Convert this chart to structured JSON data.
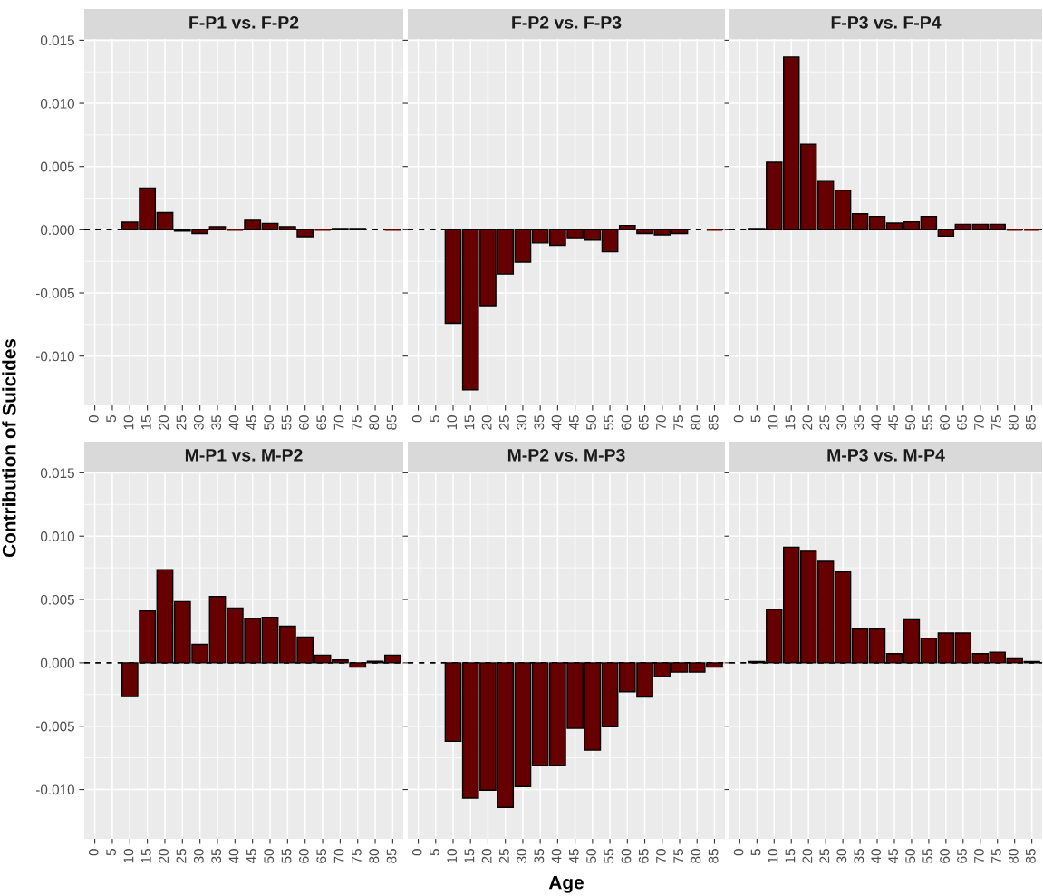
{
  "chart_data": [
    {
      "type": "bar",
      "title": "F-P1 vs. F-P2",
      "ylabel": "Contribution of Suicides",
      "categories": [
        "0",
        "5",
        "10",
        "15",
        "20",
        "25",
        "30",
        "35",
        "40",
        "45",
        "50",
        "55",
        "60",
        "65",
        "70",
        "75",
        "80",
        "85"
      ],
      "color": "#660000",
      "values": [
        null,
        null,
        0.0006,
        0.0033,
        0.00135,
        -0.0001,
        -0.0003,
        0.00025,
        0,
        0.00075,
        0.0005,
        0.00025,
        -0.00055,
        0,
        0.0001,
        0.0001,
        null,
        0
      ],
      "ylim": [
        -0.0139,
        0.0151
      ],
      "yticks": [
        {
          "value": -0.01,
          "label": "-0.010"
        },
        {
          "value": -0.005,
          "label": "-0.005"
        },
        {
          "value": 0,
          "label": "0.000"
        },
        {
          "value": 0.005,
          "label": "0.005"
        },
        {
          "value": 0.01,
          "label": "0.010"
        },
        {
          "value": 0.015,
          "label": "0.015"
        }
      ],
      "grid": true,
      "ref_lines": [
        {
          "axis": "y",
          "value": 0,
          "line_style": "dashed",
          "color": "#000000"
        }
      ]
    },
    {
      "type": "bar",
      "title": "F-P2 vs. F-P3",
      "categories": [
        "0",
        "5",
        "10",
        "15",
        "20",
        "25",
        "30",
        "35",
        "40",
        "45",
        "50",
        "55",
        "60",
        "65",
        "70",
        "75",
        "80",
        "85"
      ],
      "color": "#660000",
      "values": [
        null,
        null,
        -0.0074,
        -0.01266,
        -0.006,
        -0.0035,
        -0.00256,
        -0.00104,
        -0.00123,
        -0.00063,
        -0.00082,
        -0.00174,
        0.00034,
        -0.0003,
        -0.0004,
        -0.0003,
        null,
        0
      ],
      "ylim": [
        -0.0139,
        0.0151
      ],
      "yticks": [
        {
          "value": -0.01,
          "label": null
        },
        {
          "value": -0.005,
          "label": null
        },
        {
          "value": 0,
          "label": null
        },
        {
          "value": 0.005,
          "label": null
        },
        {
          "value": 0.01,
          "label": null
        },
        {
          "value": 0.015,
          "label": null
        }
      ],
      "grid": true,
      "tick_labels": "x",
      "ref_lines": [
        {
          "axis": "y",
          "value": 0,
          "line_style": "dashed",
          "color": "#000000"
        }
      ]
    },
    {
      "type": "bar",
      "title": "F-P3 vs. F-P4",
      "categories": [
        "0",
        "5",
        "10",
        "15",
        "20",
        "25",
        "30",
        "35",
        "40",
        "45",
        "50",
        "55",
        "60",
        "65",
        "70",
        "75",
        "80",
        "85"
      ],
      "color": "#660000",
      "values": [
        null,
        0.0001,
        0.00534,
        0.01367,
        0.00676,
        0.00382,
        0.00312,
        0.00126,
        0.00106,
        0.00053,
        0.00063,
        0.00106,
        -0.0005,
        0.00043,
        0.00043,
        0.00043,
        0,
        0
      ],
      "ylim": [
        -0.0139,
        0.0151
      ],
      "yticks": [
        {
          "value": -0.01,
          "label": null
        },
        {
          "value": -0.005,
          "label": null
        },
        {
          "value": 0,
          "label": null
        },
        {
          "value": 0.005,
          "label": null
        },
        {
          "value": 0.01,
          "label": null
        },
        {
          "value": 0.015,
          "label": null
        }
      ],
      "grid": true,
      "tick_labels": "x",
      "ref_lines": [
        {
          "axis": "y",
          "value": 0,
          "line_style": "dashed",
          "color": "#000000"
        }
      ]
    },
    {
      "type": "bar",
      "title": "M-P1 vs. M-P2",
      "categories": [
        "0",
        "5",
        "10",
        "15",
        "20",
        "25",
        "30",
        "35",
        "40",
        "45",
        "50",
        "55",
        "60",
        "65",
        "70",
        "75",
        "80",
        "85"
      ],
      "color": "#660000",
      "values": [
        null,
        null,
        -0.00267,
        0.0041,
        0.00735,
        0.00483,
        0.00146,
        0.00524,
        0.00432,
        0.0035,
        0.00359,
        0.00289,
        0.00204,
        0.00061,
        0.00022,
        -0.00034,
        0.00012,
        0.00061
      ],
      "ylim": [
        -0.0139,
        0.0151
      ],
      "yticks": [
        {
          "value": -0.01,
          "label": "-0.010"
        },
        {
          "value": -0.005,
          "label": "-0.005"
        },
        {
          "value": 0,
          "label": "0.000"
        },
        {
          "value": 0.005,
          "label": "0.005"
        },
        {
          "value": 0.01,
          "label": "0.010"
        },
        {
          "value": 0.015,
          "label": "0.015"
        }
      ],
      "grid": true,
      "ref_lines": [
        {
          "axis": "y",
          "value": 0,
          "line_style": "dashed",
          "color": "#000000"
        }
      ]
    },
    {
      "type": "bar",
      "title": "M-P2 vs. M-P3",
      "xlabel": "Age",
      "categories": [
        "0",
        "5",
        "10",
        "15",
        "20",
        "25",
        "30",
        "35",
        "40",
        "45",
        "50",
        "55",
        "60",
        "65",
        "70",
        "75",
        "80",
        "85"
      ],
      "color": "#660000",
      "values": [
        null,
        null,
        -0.00619,
        -0.01068,
        -0.01005,
        -0.01141,
        -0.00976,
        -0.00813,
        -0.00813,
        -0.00517,
        -0.00689,
        -0.00505,
        -0.00228,
        -0.00269,
        -0.00107,
        -0.00073,
        -0.00073,
        -0.00034
      ],
      "ylim": [
        -0.0139,
        0.0151
      ],
      "yticks": [
        {
          "value": -0.01,
          "label": null
        },
        {
          "value": -0.005,
          "label": null
        },
        {
          "value": 0,
          "label": null
        },
        {
          "value": 0.005,
          "label": null
        },
        {
          "value": 0.01,
          "label": null
        },
        {
          "value": 0.015,
          "label": null
        }
      ],
      "grid": true,
      "tick_labels": "x",
      "ref_lines": [
        {
          "axis": "y",
          "value": 0,
          "line_style": "dashed",
          "color": "#000000"
        }
      ]
    },
    {
      "type": "bar",
      "title": "M-P3 vs. M-P4",
      "categories": [
        "0",
        "5",
        "10",
        "15",
        "20",
        "25",
        "30",
        "35",
        "40",
        "45",
        "50",
        "55",
        "60",
        "65",
        "70",
        "75",
        "80",
        "85"
      ],
      "color": "#660000",
      "values": [
        null,
        0.0001,
        0.00422,
        0.00913,
        0.00881,
        0.00801,
        0.00718,
        0.00267,
        0.00267,
        0.00073,
        0.0034,
        0.00194,
        0.00235,
        0.00235,
        0.00073,
        0.00083,
        0.00032,
        0.0001
      ],
      "ylim": [
        -0.0139,
        0.0151
      ],
      "yticks": [
        {
          "value": -0.01,
          "label": null
        },
        {
          "value": -0.005,
          "label": null
        },
        {
          "value": 0,
          "label": null
        },
        {
          "value": 0.005,
          "label": null
        },
        {
          "value": 0.01,
          "label": null
        },
        {
          "value": 0.015,
          "label": null
        }
      ],
      "grid": true,
      "tick_labels": "x",
      "ref_lines": [
        {
          "axis": "y",
          "value": 0,
          "line_style": "dashed",
          "color": "#000000"
        }
      ]
    }
  ]
}
